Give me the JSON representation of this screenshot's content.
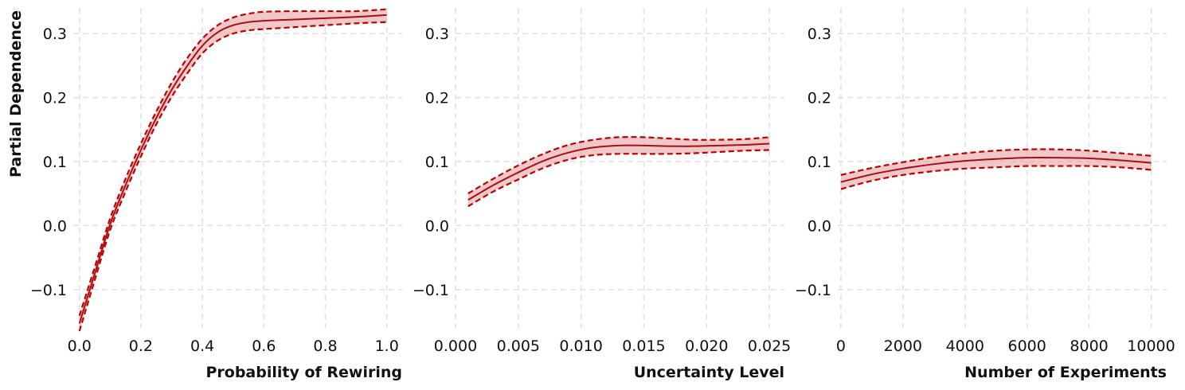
{
  "figure": {
    "ylabel": "Partial Dependence",
    "colors": {
      "line": "#a50f15",
      "band_fill": "#e8a3a3",
      "bound": "#c00000",
      "grid": "#e2e2e2"
    }
  },
  "chart_data": [
    {
      "type": "line",
      "xlabel": "Probability of Rewiring",
      "ylabel": "Partial Dependence",
      "xlim": [
        -0.02,
        1.05
      ],
      "ylim": [
        -0.16,
        0.34
      ],
      "xticks": [
        0.0,
        0.2,
        0.4,
        0.6,
        0.8,
        1.0
      ],
      "xtick_labels": [
        "0.0",
        "0.2",
        "0.4",
        "0.6",
        "0.8",
        "1.0"
      ],
      "yticks": [
        -0.1,
        0.0,
        0.1,
        0.2,
        0.3
      ],
      "ytick_labels": [
        "−0.1",
        "0.0",
        "0.1",
        "0.2",
        "0.3"
      ],
      "grid": true,
      "x": [
        0.0,
        0.05,
        0.1,
        0.15,
        0.2,
        0.25,
        0.3,
        0.35,
        0.4,
        0.45,
        0.5,
        0.55,
        0.6,
        0.7,
        0.8,
        0.9,
        1.0
      ],
      "mean": [
        -0.153,
        -0.075,
        0.002,
        0.063,
        0.118,
        0.168,
        0.212,
        0.249,
        0.281,
        0.302,
        0.313,
        0.318,
        0.32,
        0.322,
        0.324,
        0.326,
        0.329
      ],
      "upper": [
        -0.141,
        -0.065,
        0.011,
        0.073,
        0.128,
        0.178,
        0.223,
        0.261,
        0.292,
        0.313,
        0.325,
        0.331,
        0.334,
        0.335,
        0.335,
        0.335,
        0.338
      ],
      "lower": [
        -0.165,
        -0.085,
        -0.007,
        0.053,
        0.108,
        0.158,
        0.201,
        0.237,
        0.269,
        0.289,
        0.3,
        0.305,
        0.307,
        0.31,
        0.313,
        0.316,
        0.318
      ]
    },
    {
      "type": "line",
      "xlabel": "Uncertainty Level",
      "ylabel": "",
      "xlim": [
        0.0,
        0.0262
      ],
      "ylim": [
        -0.16,
        0.34
      ],
      "xticks": [
        0.0,
        0.005,
        0.01,
        0.015,
        0.02,
        0.025
      ],
      "xtick_labels": [
        "0.000",
        "0.005",
        "0.010",
        "0.015",
        "0.020",
        "0.025"
      ],
      "yticks": [
        -0.1,
        0.0,
        0.1,
        0.2,
        0.3
      ],
      "ytick_labels": [
        "−0.1",
        "0.0",
        "0.1",
        "0.2",
        "0.3"
      ],
      "grid": true,
      "x": [
        0.001,
        0.003,
        0.005,
        0.007,
        0.009,
        0.011,
        0.013,
        0.015,
        0.017,
        0.019,
        0.021,
        0.023,
        0.025
      ],
      "mean": [
        0.04,
        0.063,
        0.083,
        0.101,
        0.114,
        0.122,
        0.125,
        0.125,
        0.124,
        0.124,
        0.125,
        0.126,
        0.128
      ],
      "upper": [
        0.05,
        0.073,
        0.094,
        0.112,
        0.126,
        0.134,
        0.138,
        0.138,
        0.136,
        0.134,
        0.134,
        0.135,
        0.138
      ],
      "lower": [
        0.03,
        0.053,
        0.072,
        0.09,
        0.103,
        0.11,
        0.112,
        0.112,
        0.112,
        0.113,
        0.115,
        0.117,
        0.118
      ]
    },
    {
      "type": "line",
      "xlabel": "Number of Experiments",
      "ylabel": "",
      "xlim": [
        -100,
        10500
      ],
      "ylim": [
        -0.16,
        0.34
      ],
      "xticks": [
        0,
        2000,
        4000,
        6000,
        8000,
        10000
      ],
      "xtick_labels": [
        "0",
        "2000",
        "4000",
        "6000",
        "8000",
        "10000"
      ],
      "yticks": [
        -0.1,
        0.0,
        0.1,
        0.2,
        0.3
      ],
      "ytick_labels": [
        "−0.1",
        "0.0",
        "0.1",
        "0.2",
        "0.3"
      ],
      "grid": true,
      "x": [
        0,
        1000,
        2000,
        3000,
        4000,
        5000,
        6000,
        7000,
        8000,
        9000,
        10000
      ],
      "mean": [
        0.068,
        0.08,
        0.089,
        0.096,
        0.101,
        0.104,
        0.106,
        0.106,
        0.105,
        0.102,
        0.098
      ],
      "upper": [
        0.079,
        0.09,
        0.099,
        0.107,
        0.113,
        0.117,
        0.119,
        0.119,
        0.117,
        0.113,
        0.109
      ],
      "lower": [
        0.057,
        0.07,
        0.079,
        0.085,
        0.089,
        0.091,
        0.093,
        0.093,
        0.093,
        0.091,
        0.087
      ]
    }
  ]
}
